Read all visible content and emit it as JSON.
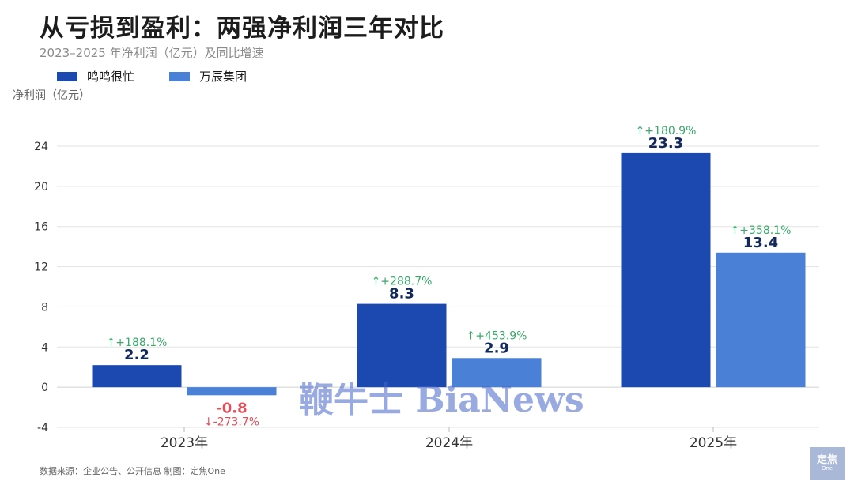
{
  "title": "从亏损到盈利：两强净利润三年对比",
  "subtitle": "2023–2025 年净利润（亿元）及同比增速",
  "source": "数据来源：企业公告、公开信息 制图：定焦One",
  "watermark": "鞭牛士 BiaNews",
  "logo": {
    "text": "定焦",
    "small": "One"
  },
  "colors": {
    "series1": "#1c49b0",
    "series2": "#4a80d6",
    "value_label": "#12295c",
    "negative_label": "#e0505a",
    "growth_up": "#3aa86a",
    "growth_down": "#e0505a",
    "grid": "#e3e3e3",
    "axis_text": "#333333"
  },
  "chart_data": {
    "type": "bar",
    "title": "从亏损到盈利：两强净利润三年对比",
    "ylabel": "净利润（亿元）",
    "xlabel": "",
    "categories": [
      "2023年",
      "2024年",
      "2025年"
    ],
    "ylim": [
      -4,
      24
    ],
    "yticks": [
      -4,
      0,
      4,
      8,
      12,
      16,
      20,
      24
    ],
    "grid": true,
    "legend_position": "top-left",
    "series": [
      {
        "name": "鸣鸣很忙",
        "values": [
          2.2,
          8.3,
          23.3
        ],
        "value_labels": [
          "2.2",
          "8.3",
          "23.3"
        ],
        "growth": [
          "↑+188.1%",
          "↑+288.7%",
          "↑+180.9%"
        ]
      },
      {
        "name": "万辰集团",
        "values": [
          -0.8,
          2.9,
          13.4
        ],
        "value_labels": [
          "-0.8",
          "2.9",
          "13.4"
        ],
        "growth": [
          "↓-273.7%",
          "↑+453.9%",
          "↑+358.1%"
        ]
      }
    ]
  }
}
